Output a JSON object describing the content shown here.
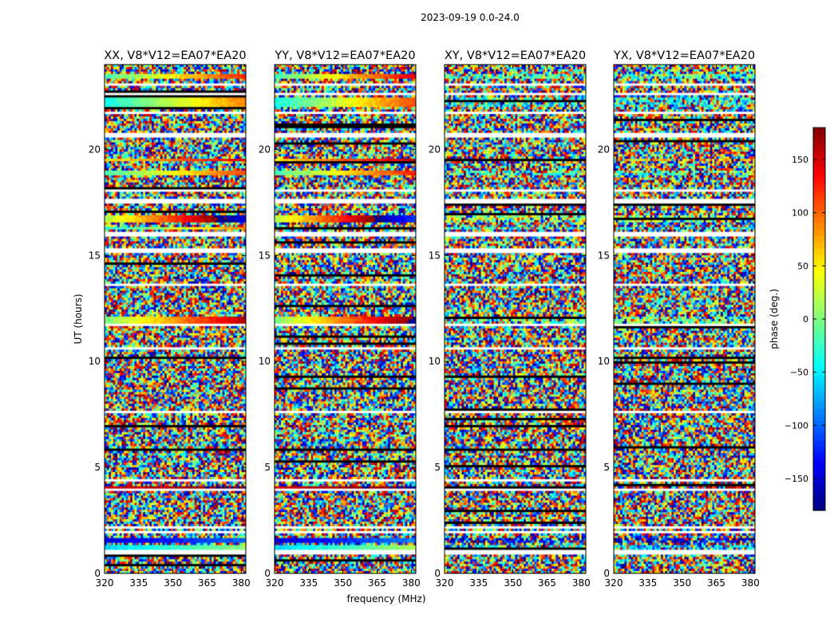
{
  "figure_title": "2023-09-19 0.0-24.0",
  "chart_data": {
    "type": "heatmap",
    "title": "2023-09-19 0.0-24.0",
    "xlabel": "frequency (MHz)",
    "ylabel": "UT (hours)",
    "xlim": [
      320,
      382
    ],
    "ylim": [
      0,
      24
    ],
    "xticks": [
      320,
      335,
      350,
      365,
      380
    ],
    "yticks": [
      0,
      5,
      10,
      15,
      20
    ],
    "panels": [
      {
        "id": "xx",
        "title": "XX, V8*V12=EA07*EA20",
        "polarization": "XX"
      },
      {
        "id": "yy",
        "title": "YY, V8*V12=EA07*EA20",
        "polarization": "YY"
      },
      {
        "id": "xy",
        "title": "XY, V8*V12=EA07*EA20",
        "polarization": "XY"
      },
      {
        "id": "yx",
        "title": "YX, V8*V12=EA07*EA20",
        "polarization": "YX"
      }
    ],
    "colorbar": {
      "label": "phase (deg.)",
      "colormap": "jet",
      "range": [
        -180,
        180
      ],
      "ticks": [
        150,
        100,
        50,
        0,
        -50,
        -100,
        -150
      ],
      "tick_labels": [
        "150",
        "100",
        "50",
        "0",
        "−50",
        "−100",
        "−150"
      ]
    },
    "coherent_phase_bands": [
      {
        "ut": [
          23.3,
          23.5
        ],
        "start_phase": -20,
        "slope": 2.2
      },
      {
        "ut": [
          22.0,
          22.4
        ],
        "start_phase": -40,
        "slope": 2.0
      },
      {
        "ut": [
          19.5,
          19.6
        ],
        "start_phase": 50,
        "slope": 1.5
      },
      {
        "ut": [
          18.8,
          19.0
        ],
        "start_phase": -20,
        "slope": 2.0
      },
      {
        "ut": [
          16.6,
          16.9
        ],
        "start_phase": 20,
        "slope": 3.0
      },
      {
        "ut": [
          16.2,
          16.3
        ],
        "start_phase": -40,
        "slope": 2.0
      },
      {
        "ut": [
          11.8,
          12.1
        ],
        "start_phase": 0,
        "slope": 2.5
      },
      {
        "ut": [
          4.0,
          4.1
        ],
        "start_phase": 150,
        "slope": 0.5
      },
      {
        "ut": [
          1.5,
          1.7
        ],
        "start_phase": -150,
        "slope": 0.8
      },
      {
        "ut": [
          1.1,
          1.3
        ],
        "start_phase": -60,
        "slope": 1.0
      }
    ],
    "flagged_rows_ut": [
      23.1,
      22.6,
      21.7,
      20.7,
      20.6,
      18.1,
      17.6,
      17.5,
      16.1,
      16.0,
      15.3,
      15.2,
      13.6,
      11.7,
      10.6,
      7.6,
      4.4,
      3.9,
      2.2,
      1.9,
      1.0
    ]
  }
}
